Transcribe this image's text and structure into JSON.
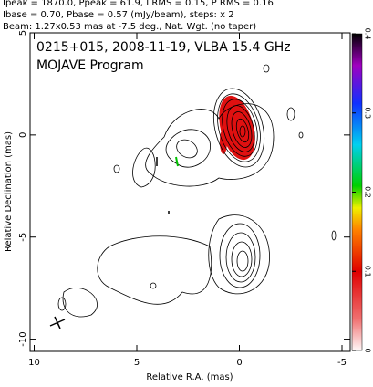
{
  "header": {
    "line1": "Ipeak = 1870.0, Ppeak = 61.9, I RMS = 0.15, P RMS = 0.16",
    "line2": "Ibase = 0.70, Pbase = 0.57 (mJy/beam), steps: x 2",
    "line3": "Beam: 1.27x0.53 mas at -7.5 deg., Nat. Wgt. (no taper)"
  },
  "chart_data": {
    "type": "contour",
    "title": "0215+015, 2008-11-19, VLBA 15.4 GHz",
    "subtitle": "MOJAVE Program",
    "x_label": "Relative R.A. (mas)",
    "y_label": "Relative Declination (mas)",
    "xlim": [
      10.2,
      -5.4
    ],
    "ylim": [
      -10.6,
      5
    ],
    "xticks": [
      10,
      5,
      0,
      -5
    ],
    "yticks": [
      5,
      0,
      -5,
      -10
    ],
    "colorbar": {
      "lim": [
        0,
        0.4
      ],
      "ticks": [
        0,
        0.1,
        0.2,
        0.3,
        0.4
      ]
    }
  }
}
